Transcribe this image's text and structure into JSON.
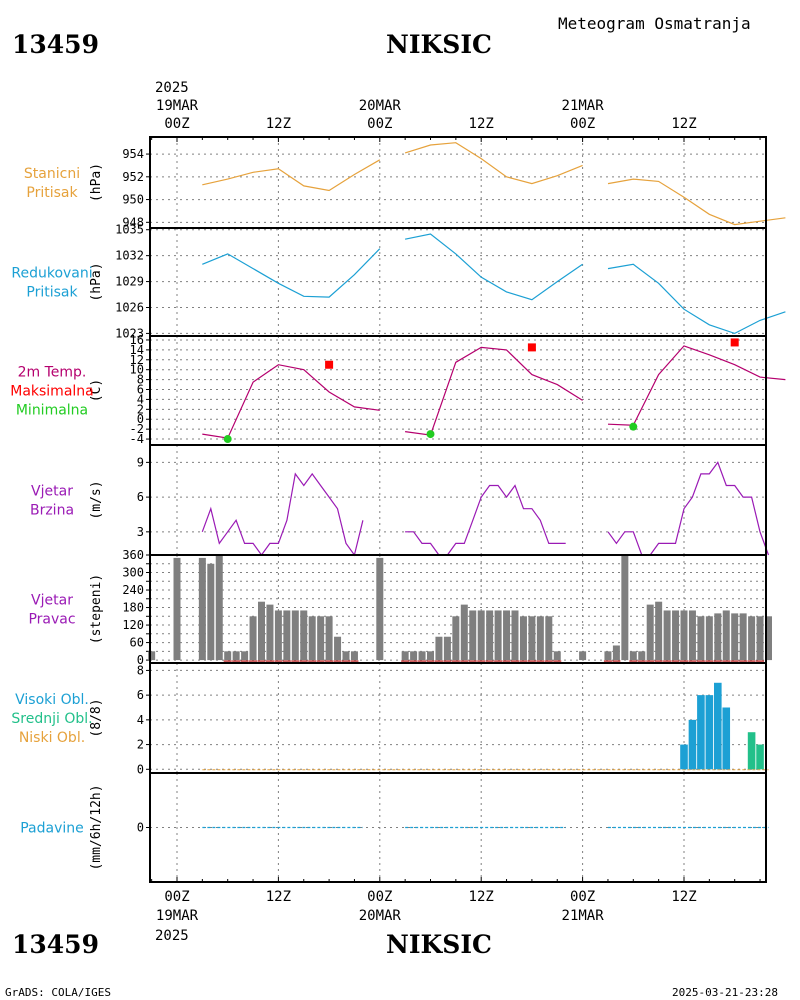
{
  "header": {
    "station_id": "13459",
    "station_name": "NIKSIC",
    "product": "Meteogram Osmatranja"
  },
  "footer": {
    "station_id": "13459",
    "station_name": "NIKSIC",
    "credit": "GrADS: COLA/IGES",
    "timestamp": "2025-03-21-23:28"
  },
  "time_axis": {
    "year": "2025",
    "day_labels": [
      "19MAR",
      "20MAR",
      "21MAR"
    ],
    "tick_labels": [
      "00Z",
      "12Z",
      "00Z",
      "12Z",
      "00Z",
      "12Z"
    ]
  },
  "colors": {
    "station_pressure": "#e6a23c",
    "reduced_pressure": "#1ca0d4",
    "temperature": "#b5006e",
    "tmax": "#ff0000",
    "tmin": "#22cc22",
    "wind": "#9a1ab5",
    "wind_dir_bar": "#7f7f7f",
    "cloud_high": "#1ca0d4",
    "cloud_mid": "#22c08a",
    "cloud_low": "#e6a23c",
    "precip": "#1ca0d4"
  },
  "chart_data": [
    {
      "type": "line",
      "panel_labels": [
        [
          "Stanicni",
          "Pritisak"
        ]
      ],
      "ylabel": "(hPa)",
      "ylim": [
        947.5,
        955.5
      ],
      "yticks": [
        948,
        950,
        952,
        954
      ],
      "x_units": "hours since 19MAR 00Z",
      "series": [
        {
          "name": "Stanicni Pritisak",
          "segments": [
            {
              "x": [
                3,
                6,
                9,
                12,
                15,
                18,
                21,
                24
              ],
              "y": [
                951.3,
                951.8,
                952.4,
                952.7,
                951.2,
                950.8,
                952.2,
                953.5
              ]
            },
            {
              "x": [
                27,
                30,
                33,
                36,
                39,
                42,
                45,
                48
              ],
              "y": [
                954.1,
                954.8,
                955.0,
                953.6,
                952.0,
                951.4,
                952.1,
                953.0
              ]
            },
            {
              "x": [
                51,
                54,
                57,
                60,
                63,
                66,
                69,
                72
              ],
              "y": [
                951.4,
                951.8,
                951.6,
                950.2,
                948.7,
                947.8,
                948.1,
                948.4
              ]
            }
          ]
        }
      ]
    },
    {
      "type": "line",
      "panel_labels": [
        [
          "Redukovani",
          "Pritisak"
        ]
      ],
      "ylabel": "(hPa)",
      "ylim": [
        1022.7,
        1035.2
      ],
      "yticks": [
        1023,
        1026,
        1029,
        1032,
        1035
      ],
      "x_units": "hours since 19MAR 00Z",
      "series": [
        {
          "name": "Redukovani Pritisak",
          "segments": [
            {
              "x": [
                3,
                6,
                9,
                12,
                15,
                18,
                21,
                24
              ],
              "y": [
                1031.0,
                1032.2,
                1030.5,
                1028.8,
                1027.3,
                1027.2,
                1029.8,
                1032.8
              ]
            },
            {
              "x": [
                27,
                30,
                33,
                36,
                39,
                42,
                45,
                48
              ],
              "y": [
                1033.9,
                1034.5,
                1032.2,
                1029.5,
                1027.8,
                1026.9,
                1029.0,
                1031.0
              ]
            },
            {
              "x": [
                51,
                54,
                57,
                60,
                63,
                66,
                69,
                72
              ],
              "y": [
                1030.5,
                1031.0,
                1028.8,
                1025.8,
                1024.0,
                1023.0,
                1024.5,
                1025.5
              ]
            }
          ]
        }
      ]
    },
    {
      "type": "line",
      "panel_labels": [
        [
          "2m Temp."
        ],
        [
          "Maksimalna"
        ],
        [
          "Minimalna"
        ]
      ],
      "ylabel": "(C)",
      "ylim": [
        -5.2,
        16.8
      ],
      "yticks": [
        -4,
        -2,
        0,
        2,
        4,
        6,
        8,
        10,
        12,
        14,
        16
      ],
      "x_units": "hours since 19MAR 00Z",
      "series": [
        {
          "name": "2m Temp.",
          "segments": [
            {
              "x": [
                3,
                6,
                9,
                12,
                15,
                18,
                21,
                24
              ],
              "y": [
                -3.0,
                -3.8,
                7.5,
                11.0,
                10.0,
                5.5,
                2.5,
                1.8
              ]
            },
            {
              "x": [
                27,
                30,
                33,
                36,
                39,
                42,
                45,
                48
              ],
              "y": [
                -2.5,
                -3.2,
                11.5,
                14.5,
                14.0,
                9.0,
                7.0,
                3.8
              ]
            },
            {
              "x": [
                51,
                54,
                57,
                60,
                63,
                66,
                69,
                72
              ],
              "y": [
                -1.0,
                -1.2,
                9.0,
                14.8,
                13.0,
                11.0,
                8.5,
                8.0
              ]
            }
          ]
        },
        {
          "name": "Maksimalna",
          "points": [
            {
              "x": 18,
              "y": 11.0
            },
            {
              "x": 42,
              "y": 14.5
            },
            {
              "x": 66,
              "y": 15.5
            }
          ]
        },
        {
          "name": "Minimalna",
          "points": [
            {
              "x": 6,
              "y": -4.0
            },
            {
              "x": 30,
              "y": -3.0
            },
            {
              "x": 54,
              "y": -1.5
            }
          ]
        }
      ]
    },
    {
      "type": "line",
      "panel_labels": [
        [
          "Vjetar",
          "Brzina"
        ]
      ],
      "ylabel": "(m/s)",
      "ylim": [
        1,
        10.5
      ],
      "yticks": [
        3,
        6,
        9
      ],
      "x_units": "hours since 19MAR 00Z",
      "series": [
        {
          "name": "Vjetar Brzina",
          "segments": [
            {
              "x": [
                3,
                4,
                5,
                6,
                7,
                8,
                9,
                10,
                11,
                12,
                13,
                14,
                15,
                16,
                17,
                18,
                19,
                20,
                21,
                22
              ],
              "y": [
                3,
                5,
                2,
                3,
                4,
                2,
                2,
                1,
                2,
                2,
                4,
                8,
                7,
                8,
                7,
                6,
                5,
                2,
                1,
                4
              ]
            },
            {
              "x": [
                27,
                28,
                29,
                30,
                31,
                32,
                33,
                34,
                35,
                36,
                37,
                38,
                39,
                40,
                41,
                42,
                43,
                44,
                45,
                46
              ],
              "y": [
                3,
                3,
                2,
                2,
                1,
                1,
                2,
                2,
                4,
                6,
                7,
                7,
                6,
                7,
                5,
                5,
                4,
                2,
                2,
                2
              ]
            },
            {
              "x": [
                51,
                52,
                53,
                54,
                55,
                56,
                57,
                58,
                59,
                60,
                61,
                62,
                63,
                64,
                65,
                66,
                67,
                68,
                69,
                70
              ],
              "y": [
                3,
                2,
                3,
                3,
                1,
                1,
                2,
                2,
                2,
                5,
                6,
                8,
                8,
                9,
                7,
                7,
                6,
                6,
                3,
                1
              ]
            }
          ]
        }
      ]
    },
    {
      "type": "bar",
      "panel_labels": [
        [
          "Vjetar",
          "Pravac"
        ]
      ],
      "ylabel": "(stepeni)",
      "ylim": [
        -10,
        360
      ],
      "yticks": [
        0,
        30,
        60,
        90,
        120,
        150,
        180,
        210,
        240,
        270,
        300,
        330,
        360
      ],
      "ytick_labels_shown": [
        0,
        60,
        120,
        180,
        240,
        300,
        360
      ],
      "x_units": "hours since 19MAR 00Z",
      "x": [
        -3,
        0,
        3,
        4,
        5,
        6,
        7,
        8,
        9,
        10,
        11,
        12,
        13,
        14,
        15,
        16,
        17,
        18,
        19,
        20,
        21,
        24,
        27,
        28,
        29,
        30,
        31,
        32,
        33,
        34,
        35,
        36,
        37,
        38,
        39,
        40,
        41,
        42,
        43,
        44,
        45,
        48,
        51,
        52,
        53,
        54,
        55,
        56,
        57,
        58,
        59,
        60,
        61,
        62,
        63,
        64,
        65,
        66,
        67,
        68,
        69,
        70
      ],
      "values": [
        30,
        350,
        350,
        330,
        360,
        30,
        30,
        30,
        150,
        200,
        190,
        170,
        170,
        170,
        170,
        150,
        150,
        150,
        80,
        30,
        30,
        350,
        30,
        30,
        30,
        30,
        80,
        80,
        150,
        190,
        170,
        170,
        170,
        170,
        170,
        170,
        150,
        150,
        150,
        150,
        30,
        30,
        30,
        50,
        360,
        30,
        30,
        190,
        200,
        170,
        170,
        170,
        170,
        150,
        150,
        160,
        170,
        160,
        160,
        150,
        150,
        150
      ]
    },
    {
      "type": "bar",
      "panel_labels": [
        [
          "Visoki Obl."
        ],
        [
          "Srednji Obl."
        ],
        [
          "Niski Obl."
        ]
      ],
      "ylabel": "(8/8)",
      "ylim": [
        -0.3,
        8.6
      ],
      "yticks": [
        0,
        2,
        4,
        6,
        8
      ],
      "x_units": "hours since 19MAR 00Z",
      "series": [
        {
          "name": "Visoki Obl.",
          "x": [
            60,
            61,
            62,
            63,
            64,
            65
          ],
          "values": [
            2,
            4,
            6,
            6,
            7,
            5
          ]
        },
        {
          "name": "Srednji Obl.",
          "x": [
            68,
            69
          ],
          "values": [
            3,
            2
          ]
        },
        {
          "name": "Niski Obl.",
          "x": [],
          "values": []
        }
      ]
    },
    {
      "type": "line",
      "panel_labels": [
        [
          "Padavine"
        ]
      ],
      "ylabel": "(mm/6h/12h)",
      "ylim": [
        -10,
        10
      ],
      "yticks": [
        0
      ],
      "x_units": "hours since 19MAR 00Z",
      "series": [
        {
          "name": "Padavine",
          "segments": [
            {
              "x": [
                3,
                22
              ],
              "y": [
                0,
                0
              ]
            },
            {
              "x": [
                27,
                46
              ],
              "y": [
                0,
                0
              ]
            },
            {
              "x": [
                51,
                70
              ],
              "y": [
                0,
                0
              ]
            }
          ]
        }
      ]
    }
  ]
}
